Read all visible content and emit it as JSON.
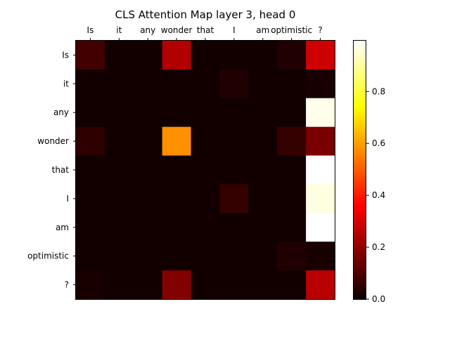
{
  "chart_data": {
    "type": "heatmap",
    "title": "CLS Attention Map layer 3, head 0",
    "x_labels": [
      "Is",
      "it",
      "any",
      "wonder",
      "that",
      "I",
      "am",
      "optimistic",
      "?"
    ],
    "y_labels": [
      "Is",
      "it",
      "any",
      "wonder",
      "that",
      "I",
      "am",
      "optimistic",
      "?"
    ],
    "x_ticks_position": "top",
    "colormap": "hot",
    "vmin": 0.0,
    "vmax": 1.0,
    "colorbar_ticks": [
      "0.0",
      "0.2",
      "0.4",
      "0.6",
      "0.8"
    ],
    "values": [
      [
        0.08,
        0.01,
        0.01,
        0.24,
        0.01,
        0.01,
        0.01,
        0.03,
        0.28
      ],
      [
        0.01,
        0.01,
        0.01,
        0.01,
        0.01,
        0.03,
        0.01,
        0.01,
        0.02
      ],
      [
        0.01,
        0.01,
        0.01,
        0.01,
        0.01,
        0.01,
        0.01,
        0.01,
        0.98
      ],
      [
        0.05,
        0.01,
        0.01,
        0.58,
        0.01,
        0.01,
        0.01,
        0.06,
        0.16
      ],
      [
        0.01,
        0.01,
        0.01,
        0.01,
        0.01,
        0.01,
        0.01,
        0.01,
        1.0
      ],
      [
        0.01,
        0.01,
        0.01,
        0.01,
        0.01,
        0.06,
        0.01,
        0.01,
        0.97
      ],
      [
        0.01,
        0.01,
        0.01,
        0.01,
        0.01,
        0.01,
        0.01,
        0.01,
        1.0
      ],
      [
        0.01,
        0.01,
        0.01,
        0.01,
        0.01,
        0.01,
        0.01,
        0.03,
        0.02
      ],
      [
        0.02,
        0.01,
        0.01,
        0.17,
        0.01,
        0.01,
        0.01,
        0.01,
        0.25
      ]
    ]
  }
}
